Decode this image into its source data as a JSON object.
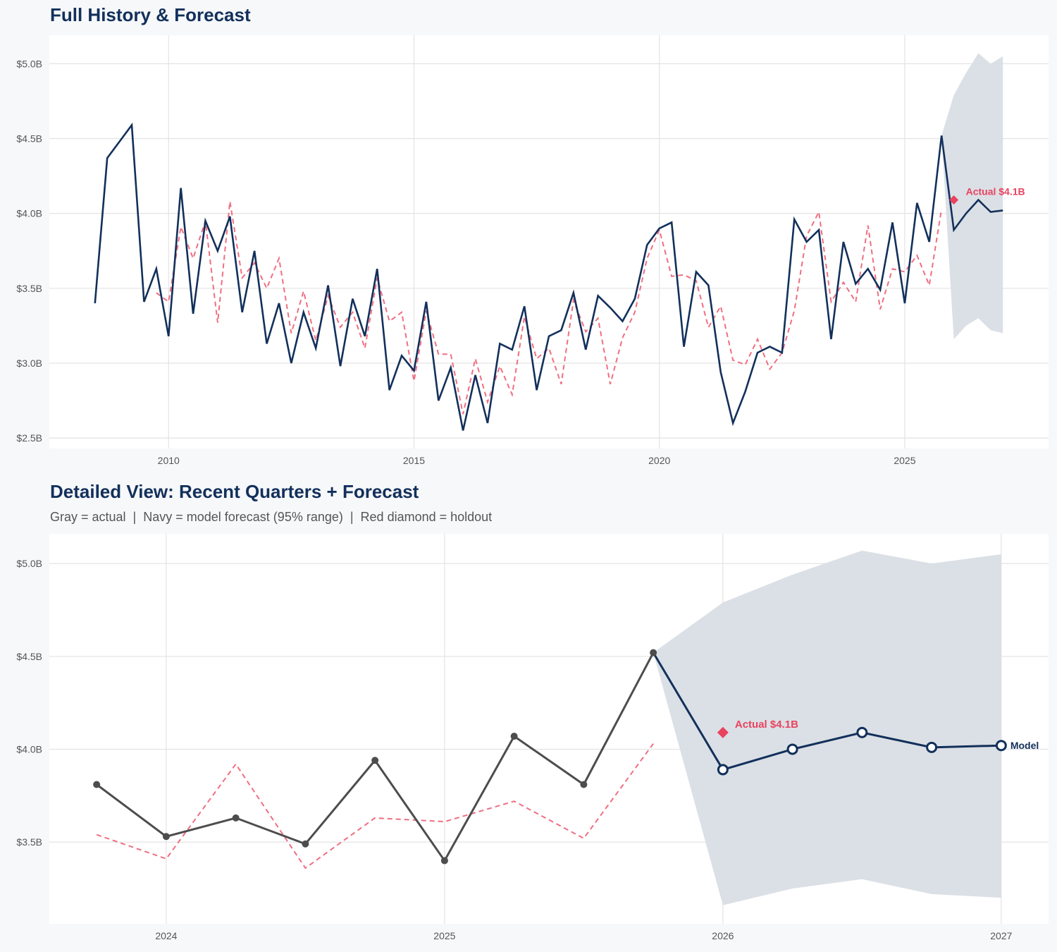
{
  "chart_data": [
    {
      "type": "line",
      "title": "Full History & Forecast",
      "xlim": [
        2007.57,
        2027.93
      ],
      "ylim": [
        2.43,
        5.19
      ],
      "x_ticks": [
        2010,
        2015,
        2020,
        2025
      ],
      "y_ticks": [
        2.5,
        3.0,
        3.5,
        4.0,
        4.5,
        5.0
      ],
      "y_tick_labels": [
        "$2.5B",
        "$3.0B",
        "$3.5B",
        "$4.0B",
        "$4.5B",
        "$5.0B"
      ],
      "grid": true,
      "series": [
        {
          "role": "actual",
          "style": "solid",
          "color": "#12305b",
          "x": [
            2008.5,
            2008.75,
            2009,
            2009.25,
            2009.5,
            2009.75,
            2010,
            2010.25,
            2010.5,
            2010.75,
            2011,
            2011.25,
            2011.5,
            2011.75,
            2012,
            2012.25,
            2012.5,
            2012.75,
            2013,
            2013.25,
            2013.5,
            2013.75,
            2014,
            2014.25,
            2014.5,
            2014.75,
            2015,
            2015.25,
            2015.5,
            2015.75,
            2016,
            2016.25,
            2016.5,
            2016.75,
            2017,
            2017.25,
            2017.5,
            2017.75,
            2018,
            2018.25,
            2018.5,
            2018.75,
            2019,
            2019.25,
            2019.5,
            2019.75,
            2020,
            2020.25,
            2020.5,
            2020.75,
            2021,
            2021.25,
            2021.5,
            2021.75,
            2022,
            2022.25,
            2022.5,
            2022.75,
            2023,
            2023.25,
            2023.5,
            2023.75,
            2024,
            2024.25,
            2024.5,
            2024.75,
            2025,
            2025.25,
            2025.5,
            2025.75
          ],
          "values": [
            3.4,
            4.37,
            4.48,
            4.59,
            3.41,
            3.63,
            3.18,
            4.17,
            3.33,
            3.95,
            3.75,
            3.98,
            3.34,
            3.75,
            3.13,
            3.4,
            3.0,
            3.34,
            3.1,
            3.52,
            2.98,
            3.43,
            3.18,
            3.63,
            2.82,
            3.05,
            2.95,
            3.41,
            2.75,
            2.97,
            2.55,
            2.92,
            2.6,
            3.13,
            3.09,
            3.38,
            2.82,
            3.18,
            3.22,
            3.47,
            3.09,
            3.45,
            3.37,
            3.28,
            3.43,
            3.79,
            3.9,
            3.94,
            3.11,
            3.61,
            3.52,
            2.94,
            2.6,
            2.81,
            3.07,
            3.11,
            3.07,
            3.96,
            3.81,
            3.89,
            3.16,
            3.81,
            3.53,
            3.63,
            3.49,
            3.94,
            3.4,
            4.07,
            3.81,
            4.52
          ]
        },
        {
          "role": "fitted",
          "style": "dashed",
          "color": "#ef6f82",
          "x": [
            2009.75,
            2010,
            2010.25,
            2010.5,
            2010.75,
            2011,
            2011.25,
            2011.5,
            2011.75,
            2012,
            2012.25,
            2012.5,
            2012.75,
            2013,
            2013.25,
            2013.5,
            2013.75,
            2014,
            2014.25,
            2014.5,
            2014.75,
            2015,
            2015.25,
            2015.5,
            2015.75,
            2016,
            2016.25,
            2016.5,
            2016.75,
            2017,
            2017.25,
            2017.5,
            2017.75,
            2018,
            2018.25,
            2018.5,
            2018.75,
            2019,
            2019.25,
            2019.5,
            2019.75,
            2020,
            2020.25,
            2020.5,
            2020.75,
            2021,
            2021.25,
            2021.5,
            2021.75,
            2022,
            2022.25,
            2022.5,
            2022.75,
            2023,
            2023.25,
            2023.5,
            2023.75,
            2024,
            2024.25,
            2024.5,
            2024.75,
            2025,
            2025.25,
            2025.5,
            2025.75
          ],
          "values": [
            3.47,
            3.41,
            3.91,
            3.7,
            3.95,
            3.27,
            4.08,
            3.57,
            3.67,
            3.5,
            3.7,
            3.2,
            3.48,
            3.15,
            3.45,
            3.24,
            3.34,
            3.1,
            3.57,
            3.28,
            3.34,
            2.88,
            3.35,
            3.06,
            3.06,
            2.66,
            3.03,
            2.74,
            2.98,
            2.79,
            3.31,
            3.03,
            3.1,
            2.86,
            3.42,
            3.21,
            3.3,
            2.86,
            3.17,
            3.34,
            3.7,
            3.89,
            3.58,
            3.59,
            3.55,
            3.24,
            3.38,
            3.02,
            2.99,
            3.16,
            2.96,
            3.07,
            3.35,
            3.85,
            4.01,
            3.41,
            3.54,
            3.41,
            3.92,
            3.36,
            3.63,
            3.61,
            3.72,
            3.52,
            4.03
          ]
        },
        {
          "role": "forecast",
          "style": "solid",
          "color": "#12305b",
          "x": [
            2025.75,
            2026,
            2026.25,
            2026.5,
            2026.75,
            2027
          ],
          "values": [
            4.52,
            3.89,
            4.0,
            4.09,
            4.01,
            4.02
          ],
          "upper": [
            4.52,
            4.79,
            4.94,
            5.07,
            5.0,
            5.05
          ],
          "lower": [
            4.52,
            3.16,
            3.25,
            3.3,
            3.22,
            3.2
          ]
        }
      ],
      "holdout": {
        "x": 2026,
        "value": 4.09,
        "label": "Actual $4.1B",
        "color": "#e8435f"
      },
      "band_color": "#d9dee5"
    },
    {
      "type": "line",
      "title": "Detailed View: Recent Quarters + Forecast",
      "subtitle": "Gray = actual  |  Navy = model forecast (95% range)  |  Red diamond = holdout",
      "xlim": [
        2023.58,
        2027.17
      ],
      "ylim": [
        3.06,
        5.16
      ],
      "x_ticks": [
        2024,
        2025,
        2026,
        2027
      ],
      "y_ticks": [
        3.5,
        4.0,
        4.5,
        5.0
      ],
      "y_tick_labels": [
        "$3.5B",
        "$4.0B",
        "$4.5B",
        "$5.0B"
      ],
      "grid": true,
      "series": [
        {
          "role": "actual",
          "style": "solid-markers",
          "color": "#4d4d4d",
          "x": [
            2023.75,
            2024,
            2024.25,
            2024.5,
            2024.75,
            2025,
            2025.25,
            2025.5,
            2025.75
          ],
          "values": [
            3.81,
            3.53,
            3.63,
            3.49,
            3.94,
            3.4,
            4.07,
            3.81,
            4.52
          ]
        },
        {
          "role": "fitted",
          "style": "dashed",
          "color": "#ef6f82",
          "x": [
            2023.75,
            2024,
            2024.25,
            2024.5,
            2024.75,
            2025,
            2025.25,
            2025.5,
            2025.75
          ],
          "values": [
            3.54,
            3.41,
            3.92,
            3.36,
            3.63,
            3.61,
            3.72,
            3.52,
            4.03
          ]
        },
        {
          "role": "forecast",
          "name": "Model",
          "style": "solid-open-markers",
          "color": "#12305b",
          "x": [
            2025.75,
            2026,
            2026.25,
            2026.5,
            2026.75,
            2027
          ],
          "values": [
            4.52,
            3.89,
            4.0,
            4.09,
            4.01,
            4.02
          ],
          "upper": [
            4.52,
            4.79,
            4.94,
            5.07,
            5.0,
            5.05
          ],
          "lower": [
            4.52,
            3.16,
            3.25,
            3.3,
            3.22,
            3.2
          ]
        }
      ],
      "holdout": {
        "x": 2026,
        "value": 4.09,
        "label": "Actual $4.1B",
        "color": "#e8435f"
      },
      "band_color": "#d9dee5"
    }
  ]
}
